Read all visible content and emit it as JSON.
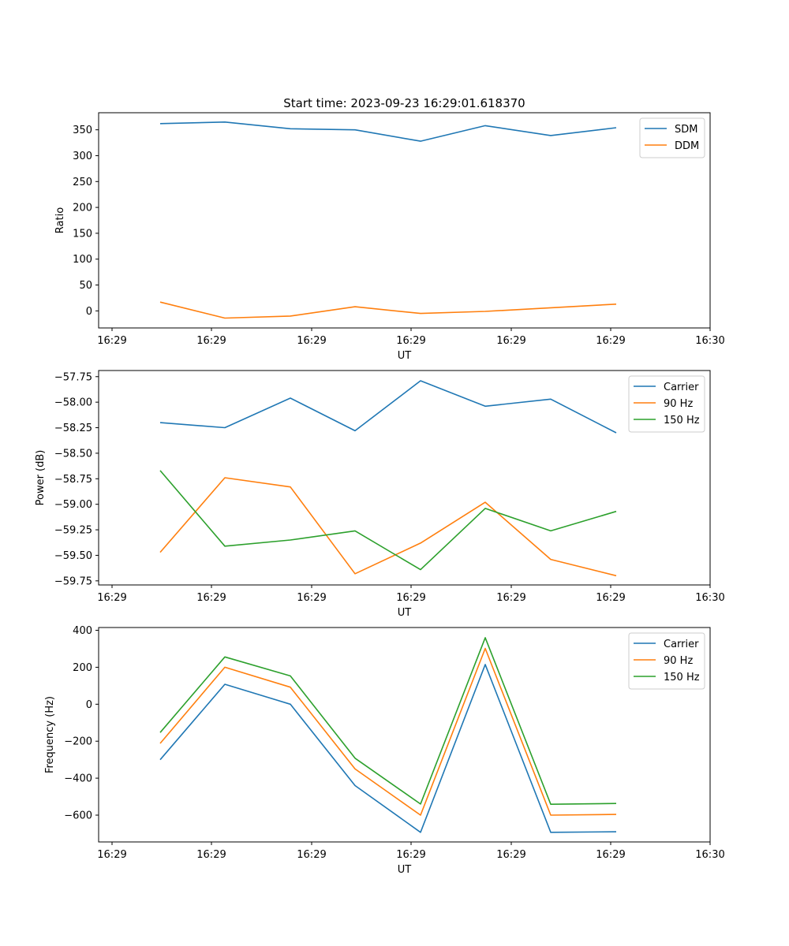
{
  "chart_data": [
    {
      "type": "line",
      "title": "Start time: 2023-09-23 16:29:01.618370",
      "xlabel": "UT",
      "ylabel": "Ratio",
      "x_ticks": [
        "16:29",
        "16:29",
        "16:29",
        "16:29",
        "16:29",
        "16:29",
        "16:30"
      ],
      "y_ticks": [
        "0",
        "50",
        "100",
        "150",
        "200",
        "250",
        "300",
        "350"
      ],
      "y_tick_values": [
        0,
        50,
        100,
        150,
        200,
        250,
        300,
        350
      ],
      "ylim": [
        -33,
        383
      ],
      "grid": false,
      "legend_position": "top-right",
      "series": [
        {
          "name": "SDM",
          "color": "#1f77b4",
          "values": [
            362,
            365,
            352,
            350,
            328,
            358,
            339,
            354
          ]
        },
        {
          "name": "DDM",
          "color": "#ff7f0e",
          "values": [
            17,
            -14,
            -10,
            8,
            -5,
            -1,
            6,
            13
          ]
        }
      ]
    },
    {
      "type": "line",
      "title": "",
      "xlabel": "UT",
      "ylabel": "Power (dB)",
      "x_ticks": [
        "16:29",
        "16:29",
        "16:29",
        "16:29",
        "16:29",
        "16:29",
        "16:30"
      ],
      "y_ticks": [
        "−59.75",
        "−59.50",
        "−59.25",
        "−59.00",
        "−58.75",
        "−58.50",
        "−58.25",
        "−58.00",
        "−57.75"
      ],
      "y_tick_values": [
        -59.75,
        -59.5,
        -59.25,
        -59.0,
        -58.75,
        -58.5,
        -58.25,
        -58.0,
        -57.75
      ],
      "ylim": [
        -59.79,
        -57.69
      ],
      "grid": false,
      "legend_position": "top-right",
      "series": [
        {
          "name": "Carrier",
          "color": "#1f77b4",
          "values": [
            -58.2,
            -58.25,
            -57.96,
            -58.28,
            -57.79,
            -58.04,
            -57.97,
            -58.3
          ]
        },
        {
          "name": "90 Hz",
          "color": "#ff7f0e",
          "values": [
            -59.47,
            -58.74,
            -58.83,
            -59.68,
            -59.38,
            -58.98,
            -59.54,
            -59.7
          ]
        },
        {
          "name": "150 Hz",
          "color": "#2ca02c",
          "values": [
            -58.67,
            -59.41,
            -59.35,
            -59.26,
            -59.64,
            -59.04,
            -59.26,
            -59.07
          ]
        }
      ]
    },
    {
      "type": "line",
      "title": "",
      "xlabel": "UT",
      "ylabel": "Frequency (Hz)",
      "x_ticks": [
        "16:29",
        "16:29",
        "16:29",
        "16:29",
        "16:29",
        "16:29",
        "16:30"
      ],
      "y_ticks": [
        "−600",
        "−400",
        "−200",
        "0",
        "200",
        "400"
      ],
      "y_tick_values": [
        -600,
        -400,
        -200,
        0,
        200,
        400
      ],
      "ylim": [
        -745,
        415
      ],
      "grid": false,
      "legend_position": "top-right",
      "series": [
        {
          "name": "Carrier",
          "color": "#1f77b4",
          "values": [
            -300,
            108,
            0,
            -440,
            -693,
            215,
            -693,
            -690
          ]
        },
        {
          "name": "90 Hz",
          "color": "#ff7f0e",
          "values": [
            -212,
            200,
            92,
            -350,
            -600,
            302,
            -600,
            -596
          ]
        },
        {
          "name": "150 Hz",
          "color": "#2ca02c",
          "values": [
            -153,
            256,
            153,
            -292,
            -540,
            360,
            -541,
            -537
          ]
        }
      ]
    }
  ]
}
